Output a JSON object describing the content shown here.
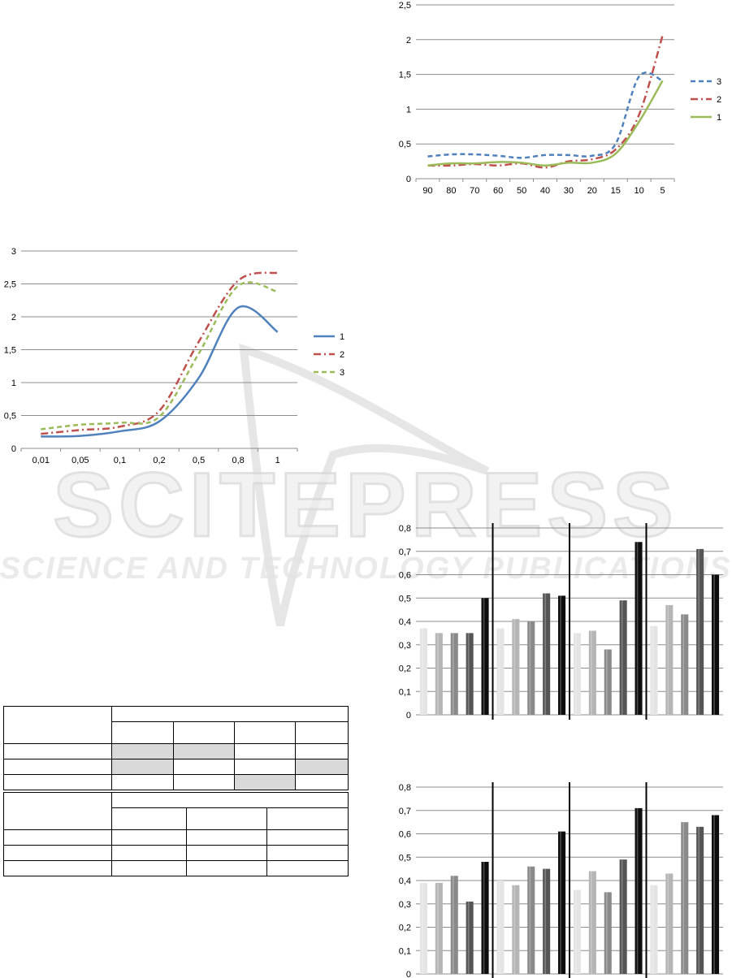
{
  "watermark": {
    "main": "SCITEPRESS",
    "sub": "SCIENCE AND TECHNOLOGY PUBLICATIONS"
  },
  "chart_data": [
    {
      "type": "line",
      "categories": [
        "90",
        "80",
        "70",
        "60",
        "50",
        "40",
        "30",
        "20",
        "15",
        "10",
        "5"
      ],
      "ylim": [
        0,
        2.5
      ],
      "yticks": [
        "0",
        "0,5",
        "1",
        "1,5",
        "2",
        "2,5"
      ],
      "legend_position": "right",
      "series": [
        {
          "name": "3",
          "style": "dashed",
          "color": "#4f81bd",
          "values": [
            0.32,
            0.35,
            0.35,
            0.33,
            0.3,
            0.34,
            0.34,
            0.33,
            0.5,
            1.47,
            1.41
          ]
        },
        {
          "name": "2",
          "style": "dash-dot",
          "color": "#c0504d",
          "values": [
            0.19,
            0.19,
            0.21,
            0.19,
            0.22,
            0.16,
            0.25,
            0.28,
            0.42,
            0.92,
            2.06
          ]
        },
        {
          "name": "1",
          "style": "solid",
          "color": "#9bbb59",
          "values": [
            0.19,
            0.22,
            0.22,
            0.24,
            0.23,
            0.19,
            0.23,
            0.23,
            0.36,
            0.82,
            1.41
          ]
        }
      ]
    },
    {
      "type": "line",
      "categories": [
        "0,01",
        "0,05",
        "0,1",
        "0,2",
        "0,5",
        "0,8",
        "1"
      ],
      "ylim": [
        0,
        3
      ],
      "yticks": [
        "0",
        "0,5",
        "1",
        "1,5",
        "2",
        "2,5",
        "3"
      ],
      "legend_position": "right",
      "series": [
        {
          "name": "1",
          "style": "solid",
          "color": "#4f81bd",
          "values": [
            0.18,
            0.19,
            0.26,
            0.41,
            1.07,
            2.14,
            1.77
          ]
        },
        {
          "name": "2",
          "style": "dash-dot",
          "color": "#c0504d",
          "values": [
            0.22,
            0.28,
            0.33,
            0.57,
            1.62,
            2.55,
            2.67
          ]
        },
        {
          "name": "3",
          "style": "dashed",
          "color": "#9bbb59",
          "values": [
            0.29,
            0.36,
            0.39,
            0.48,
            1.44,
            2.47,
            2.38
          ]
        }
      ]
    },
    {
      "type": "bar",
      "ylim": [
        0,
        0.8
      ],
      "yticks": [
        "0",
        "0,1",
        "0,2",
        "0,3",
        "0,4",
        "0,5",
        "0,6",
        "0,7",
        "0,8"
      ],
      "groups": [
        {
          "values": [
            0.37,
            0.35,
            0.35,
            0.35,
            0.5
          ]
        },
        {
          "values": [
            0.37,
            0.41,
            0.4,
            0.52,
            0.51
          ]
        },
        {
          "values": [
            0.35,
            0.36,
            0.28,
            0.49,
            0.74
          ]
        },
        {
          "values": [
            0.38,
            0.47,
            0.43,
            0.71,
            0.6
          ]
        }
      ]
    },
    {
      "type": "bar",
      "ylim": [
        0,
        0.8
      ],
      "yticks": [
        "0",
        "0,1",
        "0,2",
        "0,3",
        "0,4",
        "0,5",
        "0,6",
        "0,7",
        "0,8"
      ],
      "groups": [
        {
          "values": [
            0.39,
            0.39,
            0.42,
            0.31,
            0.48
          ]
        },
        {
          "values": [
            0.4,
            0.38,
            0.46,
            0.45,
            0.61
          ]
        },
        {
          "values": [
            0.36,
            0.44,
            0.35,
            0.49,
            0.71
          ]
        },
        {
          "values": [
            0.38,
            0.43,
            0.65,
            0.63,
            0.68
          ]
        }
      ]
    }
  ],
  "bar_colors": [
    "#e4e4e4",
    "#b5b5b5",
    "#8a8a8a",
    "#555555",
    "#0d0d0d"
  ]
}
